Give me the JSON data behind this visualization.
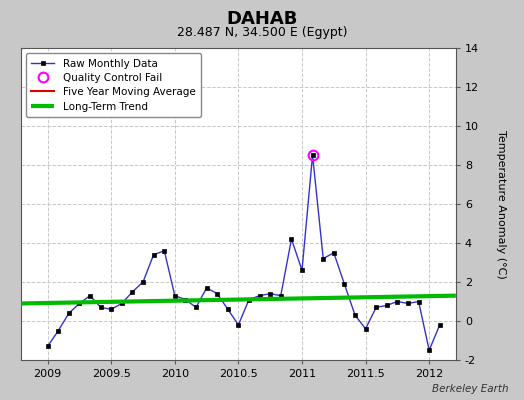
{
  "title": "DAHAB",
  "subtitle": "28.487 N, 34.500 E (Egypt)",
  "ylabel": "Temperature Anomaly (°C)",
  "watermark": "Berkeley Earth",
  "ylim": [
    -2,
    14
  ],
  "yticks": [
    -2,
    0,
    2,
    4,
    6,
    8,
    10,
    12,
    14
  ],
  "xlim": [
    2008.79,
    2012.21
  ],
  "xticks": [
    2009.0,
    2009.5,
    2010.0,
    2010.5,
    2011.0,
    2011.5,
    2012.0
  ],
  "xticklabels": [
    "2009",
    "2009.5",
    "2010",
    "2010.5",
    "2011",
    "2011.5",
    "2012"
  ],
  "fig_bg_color": "#c8c8c8",
  "plot_bg_color": "#ffffff",
  "grid_color": "#c8c8c8",
  "long_term_trend_color": "#00bb00",
  "long_term_trend_x": [
    2008.79,
    2012.21
  ],
  "long_term_trend_y": [
    0.9,
    1.3
  ],
  "five_year_avg_color": "#dd0000",
  "raw_line_color": "#3333cc",
  "raw_marker_color": "#000000",
  "qc_fail_color": "#ff00ff",
  "raw_data": {
    "x": [
      2009.0,
      2009.083,
      2009.167,
      2009.25,
      2009.333,
      2009.417,
      2009.5,
      2009.583,
      2009.667,
      2009.75,
      2009.833,
      2009.917,
      2010.0,
      2010.083,
      2010.167,
      2010.25,
      2010.333,
      2010.417,
      2010.5,
      2010.583,
      2010.667,
      2010.75,
      2010.833,
      2010.917,
      2011.0,
      2011.083,
      2011.167,
      2011.25,
      2011.333,
      2011.417,
      2011.5,
      2011.583,
      2011.667,
      2011.75,
      2011.833,
      2011.917,
      2012.0,
      2012.083
    ],
    "y": [
      -1.3,
      -0.5,
      0.4,
      0.9,
      1.3,
      0.7,
      0.6,
      0.9,
      1.5,
      2.0,
      3.4,
      3.6,
      1.3,
      1.1,
      0.7,
      1.7,
      1.4,
      0.6,
      -0.2,
      1.1,
      1.3,
      1.4,
      1.3,
      4.2,
      2.6,
      8.5,
      3.2,
      3.5,
      1.9,
      0.3,
      -0.4,
      0.7,
      0.8,
      1.0,
      0.9,
      1.0,
      -1.5,
      -0.2
    ]
  },
  "qc_fail_points": {
    "x": [
      2011.083
    ],
    "y": [
      8.5
    ]
  },
  "five_year_avg_y": [
    null,
    null,
    null,
    null,
    null,
    null,
    null,
    null,
    null,
    null,
    null,
    null,
    null,
    null,
    null,
    null,
    null,
    null,
    null,
    null,
    null,
    null,
    null,
    null,
    null,
    null,
    null,
    null,
    null,
    null,
    null,
    null,
    null,
    null,
    null,
    null,
    null,
    null
  ]
}
